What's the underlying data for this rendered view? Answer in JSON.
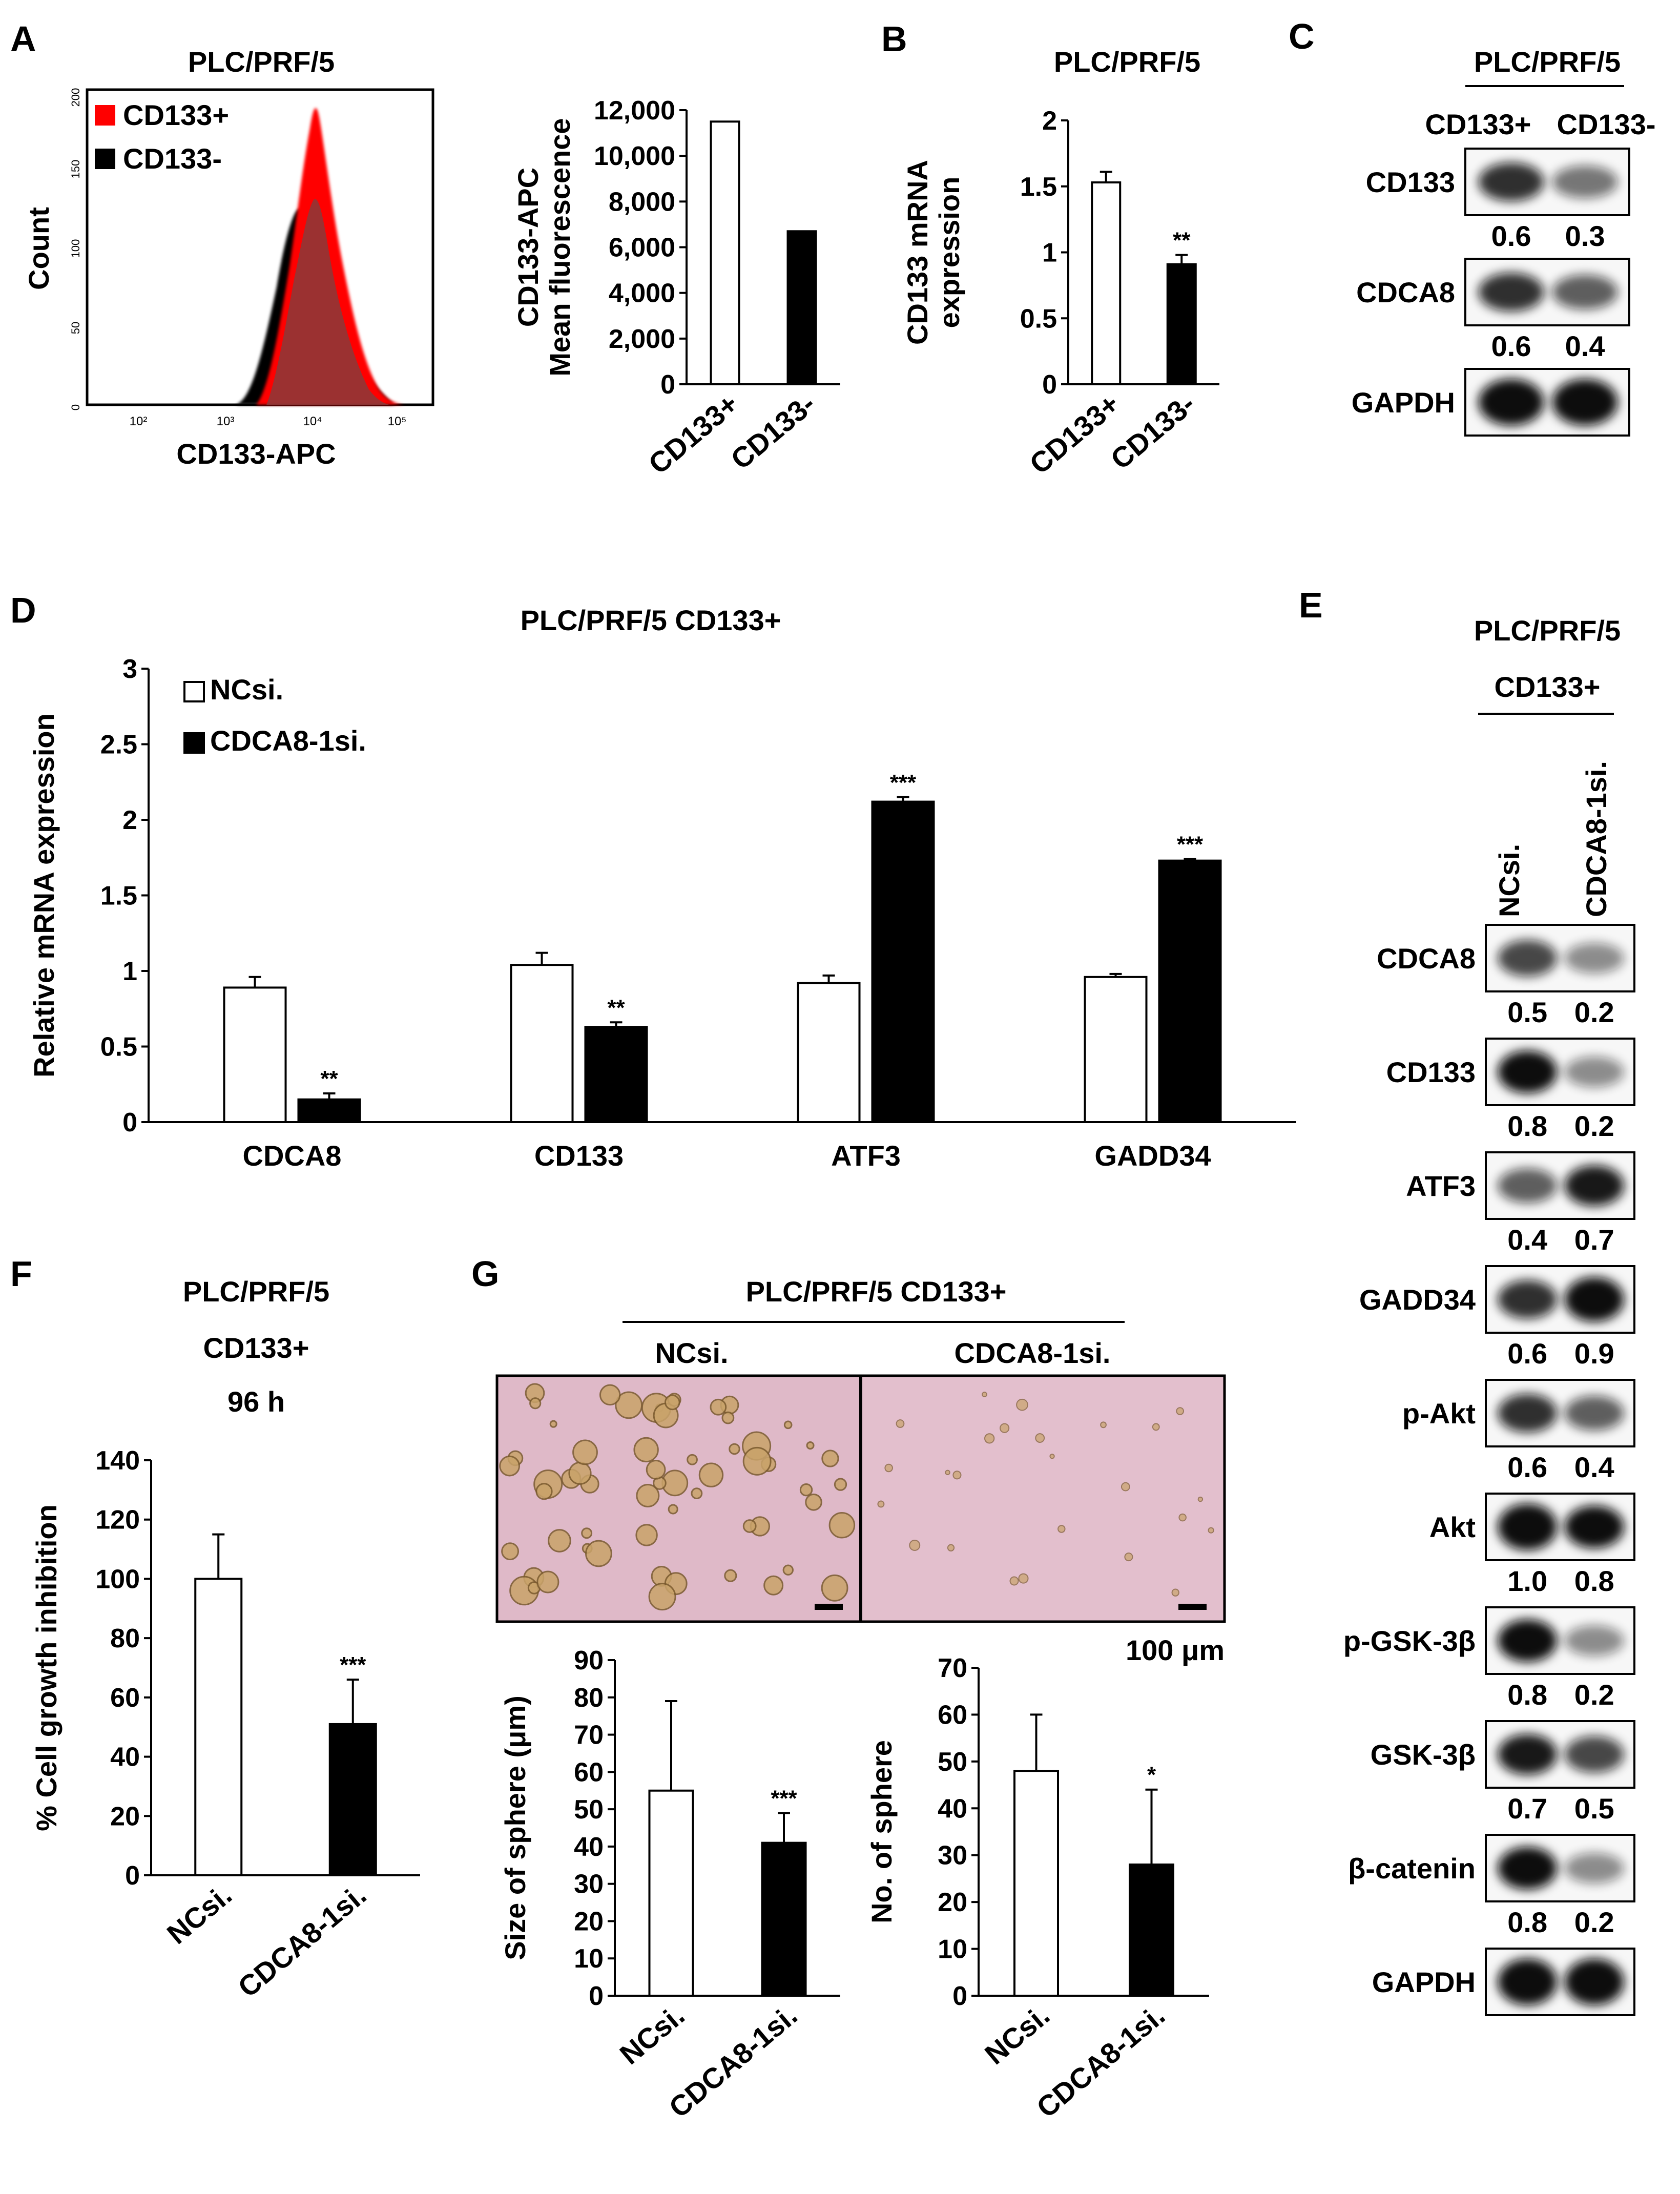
{
  "colors": {
    "black": "#000000",
    "red": "#ff0000",
    "sphere_bg": "#dfb9c8",
    "sphere_tint": "#cf9fb3"
  },
  "panels": {
    "A": {
      "letter": "A",
      "title": "PLC/PRF/5",
      "histogram": {
        "ylabel": "Count",
        "xlabel": "CD133-APC",
        "yticks": [
          "0",
          "50",
          "100",
          "150",
          "200"
        ],
        "xticks": [
          "10²",
          "10³",
          "10⁴",
          "10⁵"
        ],
        "legend": [
          {
            "name": "CD133+",
            "color": "#ff0000"
          },
          {
            "name": "CD133-",
            "color": "#000000"
          }
        ]
      }
    },
    "B": {
      "letter": "B",
      "title": "PLC/PRF/5"
    },
    "C": {
      "letter": "C",
      "title": "PLC/PRF/5",
      "lanes": [
        "CD133+",
        "CD133-"
      ],
      "blots": [
        {
          "label": "CD133",
          "quant": [
            "0.6",
            "0.3"
          ]
        },
        {
          "label": "CDCA8",
          "quant": [
            "0.6",
            "0.4"
          ]
        },
        {
          "label": "GAPDH",
          "quant": []
        }
      ]
    },
    "D": {
      "letter": "D",
      "title": "PLC/PRF/5   CD133+"
    },
    "E": {
      "letter": "E",
      "title": "PLC/PRF/5",
      "subtitle": "CD133+",
      "lanes": [
        "NCsi.",
        "CDCA8-1si."
      ],
      "blots": [
        {
          "label": "CDCA8",
          "quant": [
            "0.5",
            "0.2"
          ]
        },
        {
          "label": "CD133",
          "quant": [
            "0.8",
            "0.2"
          ]
        },
        {
          "label": "ATF3",
          "quant": [
            "0.4",
            "0.7"
          ]
        },
        {
          "label": "GADD34",
          "quant": [
            "0.6",
            "0.9"
          ]
        },
        {
          "label": "p-Akt",
          "quant": [
            "0.6",
            "0.4"
          ]
        },
        {
          "label": "Akt",
          "quant": [
            "1.0",
            "0.8"
          ]
        },
        {
          "label": "p-GSK-3β",
          "quant": [
            "0.8",
            "0.2"
          ]
        },
        {
          "label": "GSK-3β",
          "quant": [
            "0.7",
            "0.5"
          ]
        },
        {
          "label": "β-catenin",
          "quant": [
            "0.8",
            "0.2"
          ]
        },
        {
          "label": "GAPDH",
          "quant": []
        }
      ]
    },
    "F": {
      "letter": "F",
      "title": "PLC/PRF/5",
      "subtitle": "CD133+",
      "time": "96 h"
    },
    "G": {
      "letter": "G",
      "title": "PLC/PRF/5   CD133+",
      "images": [
        "NCsi.",
        "CDCA8-1si."
      ],
      "scale": "100 μm"
    }
  },
  "chart_data": [
    {
      "id": "A-mfi",
      "type": "bar",
      "categories": [
        "CD133+",
        "CD133-"
      ],
      "values": [
        11500,
        6700
      ],
      "ylabel": "CD133-APC Mean fluorescence",
      "ylim": [
        0,
        12000
      ],
      "yticks": [
        "0",
        "2,000",
        "4,000",
        "6,000",
        "8,000",
        "10,000",
        "12,000"
      ],
      "fills": [
        "#ffffff",
        "#000000"
      ]
    },
    {
      "id": "B-mrna",
      "type": "bar",
      "categories": [
        "CD133+",
        "CD133-"
      ],
      "values": [
        1.53,
        0.91
      ],
      "errors": [
        0.08,
        0.07
      ],
      "ylabel": "CD133 mRNA expression",
      "ylim": [
        0,
        2
      ],
      "yticks": [
        "0",
        "0.5",
        "1",
        "1.5",
        "2"
      ],
      "significance": [
        "",
        "**"
      ],
      "fills": [
        "#ffffff",
        "#000000"
      ]
    },
    {
      "id": "D-mrna",
      "type": "bar",
      "categories": [
        "CDCA8",
        "CD133",
        "ATF3",
        "GADD34"
      ],
      "series": [
        {
          "name": "NCsi.",
          "values": [
            0.89,
            1.04,
            0.92,
            0.96
          ],
          "errors": [
            0.07,
            0.08,
            0.05,
            0.02
          ],
          "significance": [
            "",
            "",
            "",
            ""
          ],
          "fill": "#ffffff"
        },
        {
          "name": "CDCA8-1si.",
          "values": [
            0.15,
            0.63,
            2.12,
            1.73
          ],
          "errors": [
            0.04,
            0.03,
            0.03,
            0.01
          ],
          "significance": [
            "**",
            "**",
            "***",
            "***"
          ],
          "fill": "#000000"
        }
      ],
      "ylabel": "Relative mRNA expression",
      "ylim": [
        0,
        3
      ],
      "yticks": [
        "0",
        "0.5",
        "1",
        "1.5",
        "2",
        "2.5",
        "3"
      ],
      "legend": "top-left"
    },
    {
      "id": "F-growth",
      "type": "bar",
      "categories": [
        "NCsi.",
        "CDCA8-1si."
      ],
      "values": [
        100,
        51
      ],
      "errors": [
        15,
        15
      ],
      "ylabel": "% Cell growth inhibition",
      "ylim": [
        0,
        140
      ],
      "yticks": [
        "0",
        "20",
        "40",
        "60",
        "80",
        "100",
        "120",
        "140"
      ],
      "significance": [
        "",
        "***"
      ],
      "fills": [
        "#ffffff",
        "#000000"
      ]
    },
    {
      "id": "G-size",
      "type": "bar",
      "categories": [
        "NCsi.",
        "CDCA8-1si."
      ],
      "values": [
        55,
        41
      ],
      "errors": [
        24,
        8
      ],
      "ylabel": "Size of sphere (μm)",
      "ylim": [
        0,
        90
      ],
      "yticks": [
        "0",
        "10",
        "20",
        "30",
        "40",
        "50",
        "60",
        "70",
        "80",
        "90"
      ],
      "significance": [
        "",
        "***"
      ],
      "fills": [
        "#ffffff",
        "#000000"
      ]
    },
    {
      "id": "G-count",
      "type": "bar",
      "categories": [
        "NCsi.",
        "CDCA8-1si."
      ],
      "values": [
        48,
        28
      ],
      "errors": [
        12,
        16
      ],
      "ylabel": "No. of sphere",
      "ylim": [
        0,
        70
      ],
      "yticks": [
        "0",
        "10",
        "20",
        "30",
        "40",
        "50",
        "60",
        "70"
      ],
      "significance": [
        "",
        "*"
      ],
      "fills": [
        "#ffffff",
        "#000000"
      ]
    }
  ]
}
